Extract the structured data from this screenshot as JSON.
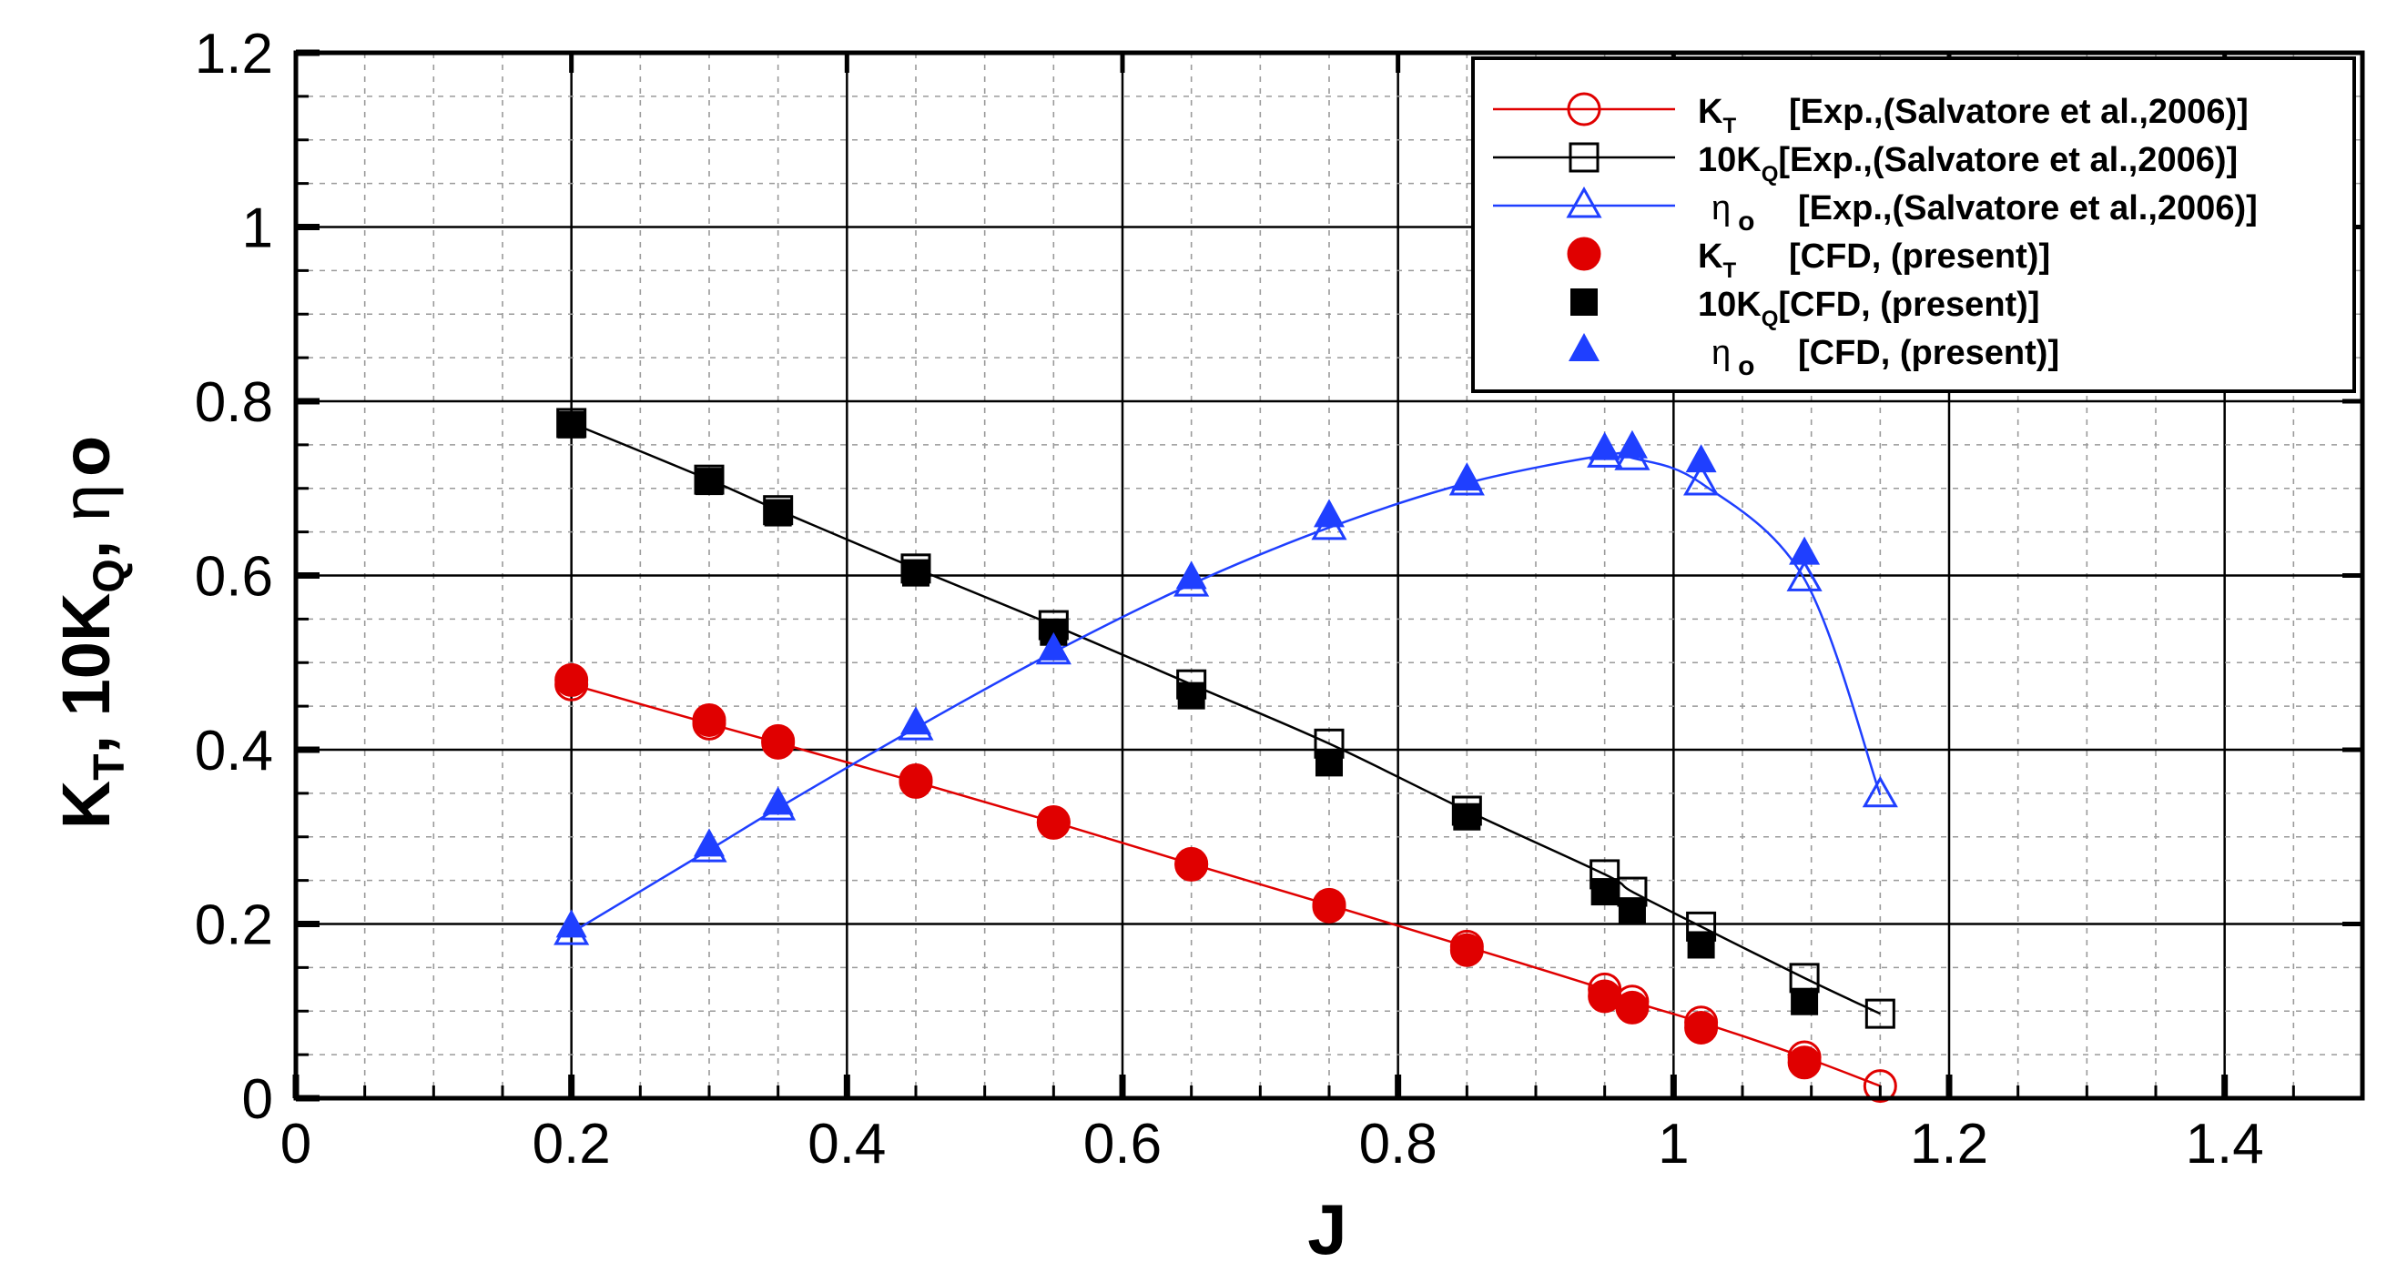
{
  "chart_data": {
    "type": "line",
    "title": "",
    "xlabel": "J",
    "ylabel": "K_T, 10K_Q, η_o",
    "ylabel_parts": {
      "kt_main": "K",
      "kt_sub": "T",
      "comma1": ", ",
      "kq_main": "10K",
      "kq_sub": "Q",
      "comma2": ", ",
      "eta_main": "η",
      "eta_sub": "o"
    },
    "xlim": [
      0,
      1.5
    ],
    "ylim": [
      0,
      1.2
    ],
    "x_ticks": [
      "0",
      "0.2",
      "0.4",
      "0.6",
      "0.8",
      "1",
      "1.2",
      "1.4"
    ],
    "y_ticks": [
      "0",
      "0.2",
      "0.4",
      "0.6",
      "0.8",
      "1",
      "1.2"
    ],
    "grid": true,
    "legend_position": "top-right",
    "series": [
      {
        "name": "K_T [Exp.,(Salvatore et al.,2006)]",
        "legend_main": "K",
        "legend_sub": "T",
        "legend_rest": "[Exp.,(Salvatore et al.,2006)]",
        "style": "line-open-circle",
        "color": "#e00000",
        "x": [
          0.2,
          0.3,
          0.35,
          0.45,
          0.55,
          0.65,
          0.75,
          0.85,
          0.95,
          0.97,
          1.02,
          1.095,
          1.15
        ],
        "y": [
          0.475,
          0.43,
          0.408,
          0.363,
          0.317,
          0.269,
          0.222,
          0.174,
          0.125,
          0.111,
          0.087,
          0.047,
          0.014
        ]
      },
      {
        "name": "10K_Q [Exp.,(Salvatore et al.,2006)]",
        "legend_main": "10K",
        "legend_sub": "Q",
        "legend_rest": "[Exp.,(Salvatore et al.,2006)]",
        "style": "line-open-square",
        "color": "#000000",
        "x": [
          0.2,
          0.3,
          0.35,
          0.45,
          0.55,
          0.65,
          0.75,
          0.85,
          0.95,
          0.97,
          1.02,
          1.095,
          1.15
        ],
        "y": [
          0.775,
          0.71,
          0.675,
          0.608,
          0.543,
          0.475,
          0.407,
          0.33,
          0.257,
          0.237,
          0.197,
          0.138,
          0.097
        ]
      },
      {
        "name": "η_o [Exp.,(Salvatore et al.,2006)]",
        "legend_main": "η",
        "legend_sub": "o",
        "legend_rest": "[Exp.,(Salvatore et al.,2006)]",
        "style": "line-open-triangle",
        "color": "#1f3fff",
        "x": [
          0.2,
          0.3,
          0.35,
          0.45,
          0.55,
          0.65,
          0.75,
          0.85,
          0.95,
          0.97,
          1.02,
          1.095,
          1.15
        ],
        "y": [
          0.19,
          0.285,
          0.333,
          0.425,
          0.512,
          0.59,
          0.655,
          0.706,
          0.738,
          0.735,
          0.706,
          0.596,
          0.348
        ]
      },
      {
        "name": "K_T [CFD, (present)]",
        "legend_main": "K",
        "legend_sub": "T",
        "legend_rest": "[CFD, (present)]",
        "style": "filled-circle",
        "color": "#e00000",
        "x": [
          0.2,
          0.3,
          0.35,
          0.45,
          0.55,
          0.65,
          0.75,
          0.85,
          0.95,
          0.97,
          1.02,
          1.095
        ],
        "y": [
          0.48,
          0.434,
          0.41,
          0.365,
          0.316,
          0.268,
          0.22,
          0.17,
          0.117,
          0.104,
          0.081,
          0.041
        ]
      },
      {
        "name": "10K_Q [CFD, (present)]",
        "legend_main": "10K",
        "legend_sub": "Q",
        "legend_rest": "[CFD, (present)]",
        "style": "filled-square",
        "color": "#000000",
        "x": [
          0.2,
          0.3,
          0.35,
          0.45,
          0.55,
          0.65,
          0.75,
          0.85,
          0.95,
          0.97,
          1.02,
          1.095
        ],
        "y": [
          0.773,
          0.708,
          0.672,
          0.603,
          0.535,
          0.462,
          0.385,
          0.323,
          0.237,
          0.215,
          0.176,
          0.111
        ]
      },
      {
        "name": "η_o [CFD, (present)]",
        "legend_main": "η",
        "legend_sub": "o",
        "legend_rest": "[CFD, (present)]",
        "style": "filled-triangle",
        "color": "#1f3fff",
        "x": [
          0.2,
          0.3,
          0.35,
          0.45,
          0.55,
          0.65,
          0.75,
          0.85,
          0.95,
          0.97,
          1.02,
          1.095
        ],
        "y": [
          0.197,
          0.29,
          0.338,
          0.43,
          0.515,
          0.597,
          0.668,
          0.71,
          0.745,
          0.747,
          0.731,
          0.625
        ]
      }
    ]
  }
}
